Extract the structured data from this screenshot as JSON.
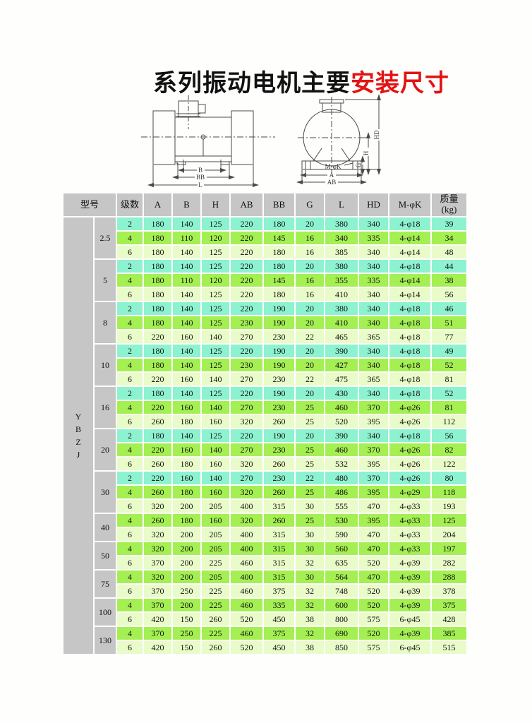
{
  "title": {
    "blue_part": "系列振动电机主要",
    "red_part": "安装尺寸"
  },
  "colors": {
    "title_blue": "#1a6fd1",
    "title_red": "#e21313",
    "header_gray": "#c6c6c6",
    "row_2_poles": "#8df2cf",
    "row_4_poles": "#a4ef52",
    "row_6_poles": "#e9fbc8"
  },
  "diagrams": {
    "side_view": {
      "dim_b": "B",
      "dim_bb": "BB",
      "dim_l": "L"
    },
    "end_view": {
      "dim_mk": "M-φK",
      "dim_a": "A",
      "dim_ab": "AB",
      "dim_hd": "HD",
      "dim_h": "H",
      "dim_g": "G"
    }
  },
  "table": {
    "headers": [
      "型号",
      "级数",
      "A",
      "B",
      "H",
      "AB",
      "BB",
      "G",
      "L",
      "HD",
      "M-φK",
      "质量 (kg)"
    ],
    "series_letters": [
      "Y",
      "B",
      "Z",
      "J"
    ],
    "groups": [
      {
        "model": "2.5",
        "rows": [
          {
            "poles": "2",
            "values": [
              "180",
              "140",
              "125",
              "220",
              "180",
              "20",
              "380",
              "340",
              "4-φ18",
              "39"
            ]
          },
          {
            "poles": "4",
            "values": [
              "180",
              "110",
              "120",
              "220",
              "145",
              "16",
              "340",
              "335",
              "4-φ14",
              "34"
            ]
          },
          {
            "poles": "6",
            "values": [
              "180",
              "140",
              "125",
              "220",
              "180",
              "16",
              "385",
              "340",
              "4-φ14",
              "48"
            ]
          }
        ]
      },
      {
        "model": "5",
        "rows": [
          {
            "poles": "2",
            "values": [
              "180",
              "140",
              "125",
              "220",
              "180",
              "20",
              "380",
              "340",
              "4-φ18",
              "44"
            ]
          },
          {
            "poles": "4",
            "values": [
              "180",
              "110",
              "120",
              "220",
              "145",
              "16",
              "355",
              "335",
              "4-φ14",
              "38"
            ]
          },
          {
            "poles": "6",
            "values": [
              "180",
              "140",
              "125",
              "220",
              "180",
              "16",
              "410",
              "340",
              "4-φ14",
              "56"
            ]
          }
        ]
      },
      {
        "model": "8",
        "rows": [
          {
            "poles": "2",
            "values": [
              "180",
              "140",
              "125",
              "220",
              "190",
              "20",
              "380",
              "340",
              "4-φ18",
              "46"
            ]
          },
          {
            "poles": "4",
            "values": [
              "180",
              "140",
              "125",
              "230",
              "190",
              "20",
              "410",
              "340",
              "4-φ18",
              "51"
            ]
          },
          {
            "poles": "6",
            "values": [
              "220",
              "160",
              "140",
              "270",
              "230",
              "22",
              "465",
              "365",
              "4-φ18",
              "77"
            ]
          }
        ]
      },
      {
        "model": "10",
        "rows": [
          {
            "poles": "2",
            "values": [
              "180",
              "140",
              "125",
              "220",
              "190",
              "20",
              "390",
              "340",
              "4-φ18",
              "49"
            ]
          },
          {
            "poles": "4",
            "values": [
              "180",
              "140",
              "125",
              "230",
              "190",
              "20",
              "427",
              "340",
              "4-φ18",
              "52"
            ]
          },
          {
            "poles": "6",
            "values": [
              "220",
              "160",
              "140",
              "270",
              "230",
              "22",
              "475",
              "365",
              "4-φ18",
              "81"
            ]
          }
        ]
      },
      {
        "model": "16",
        "rows": [
          {
            "poles": "2",
            "values": [
              "180",
              "140",
              "125",
              "220",
              "190",
              "20",
              "430",
              "340",
              "4-φ18",
              "52"
            ]
          },
          {
            "poles": "4",
            "values": [
              "220",
              "160",
              "140",
              "270",
              "230",
              "25",
              "460",
              "370",
              "4-φ26",
              "81"
            ]
          },
          {
            "poles": "6",
            "values": [
              "260",
              "180",
              "160",
              "320",
              "260",
              "25",
              "520",
              "395",
              "4-φ26",
              "112"
            ]
          }
        ]
      },
      {
        "model": "20",
        "rows": [
          {
            "poles": "2",
            "values": [
              "180",
              "140",
              "125",
              "220",
              "190",
              "20",
              "390",
              "340",
              "4-φ18",
              "56"
            ]
          },
          {
            "poles": "4",
            "values": [
              "220",
              "160",
              "140",
              "270",
              "230",
              "25",
              "460",
              "370",
              "4-φ26",
              "82"
            ]
          },
          {
            "poles": "6",
            "values": [
              "260",
              "180",
              "160",
              "320",
              "260",
              "25",
              "532",
              "395",
              "4-φ26",
              "122"
            ]
          }
        ]
      },
      {
        "model": "30",
        "rows": [
          {
            "poles": "2",
            "values": [
              "220",
              "160",
              "140",
              "270",
              "230",
              "22",
              "480",
              "370",
              "4-φ26",
              "80"
            ]
          },
          {
            "poles": "4",
            "values": [
              "260",
              "180",
              "160",
              "320",
              "260",
              "25",
              "486",
              "395",
              "4-φ29",
              "118"
            ]
          },
          {
            "poles": "6",
            "values": [
              "320",
              "200",
              "205",
              "400",
              "315",
              "30",
              "555",
              "470",
              "4-φ33",
              "193"
            ]
          }
        ]
      },
      {
        "model": "40",
        "rows": [
          {
            "poles": "4",
            "values": [
              "260",
              "180",
              "160",
              "320",
              "260",
              "25",
              "530",
              "395",
              "4-φ33",
              "125"
            ]
          },
          {
            "poles": "6",
            "values": [
              "320",
              "200",
              "205",
              "400",
              "315",
              "30",
              "590",
              "470",
              "4-φ33",
              "204"
            ]
          }
        ]
      },
      {
        "model": "50",
        "rows": [
          {
            "poles": "4",
            "values": [
              "320",
              "200",
              "205",
              "400",
              "315",
              "30",
              "560",
              "470",
              "4-φ33",
              "197"
            ]
          },
          {
            "poles": "6",
            "values": [
              "370",
              "200",
              "225",
              "460",
              "315",
              "32",
              "635",
              "520",
              "4-φ39",
              "282"
            ]
          }
        ]
      },
      {
        "model": "75",
        "rows": [
          {
            "poles": "4",
            "values": [
              "320",
              "200",
              "205",
              "400",
              "315",
              "30",
              "564",
              "470",
              "4-φ39",
              "288"
            ]
          },
          {
            "poles": "6",
            "values": [
              "370",
              "250",
              "225",
              "460",
              "375",
              "32",
              "748",
              "520",
              "4-φ39",
              "378"
            ]
          }
        ]
      },
      {
        "model": "100",
        "rows": [
          {
            "poles": "4",
            "values": [
              "370",
              "200",
              "225",
              "460",
              "335",
              "32",
              "600",
              "520",
              "4-φ39",
              "375"
            ]
          },
          {
            "poles": "6",
            "values": [
              "420",
              "150",
              "260",
              "520",
              "450",
              "38",
              "800",
              "575",
              "6-φ45",
              "428"
            ]
          }
        ]
      },
      {
        "model": "130",
        "rows": [
          {
            "poles": "4",
            "values": [
              "370",
              "250",
              "225",
              "460",
              "375",
              "32",
              "690",
              "520",
              "4-φ39",
              "385"
            ]
          },
          {
            "poles": "6",
            "values": [
              "420",
              "150",
              "260",
              "520",
              "450",
              "38",
              "850",
              "575",
              "6-φ45",
              "515"
            ]
          }
        ]
      }
    ]
  }
}
